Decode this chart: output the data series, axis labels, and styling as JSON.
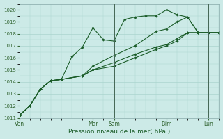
{
  "xlabel": "Pression niveau de la mer( hPa )",
  "ylim": [
    1011,
    1020.5
  ],
  "yticks": [
    1011,
    1012,
    1013,
    1014,
    1015,
    1016,
    1017,
    1018,
    1019,
    1020
  ],
  "bg_color": "#cceae7",
  "grid_color": "#aad4ce",
  "line_color": "#1a5c28",
  "x_tick_positions": [
    0,
    3.5,
    4.5,
    7.0,
    9.0
  ],
  "x_tick_labels": [
    "Ven",
    "Mar",
    "Sam",
    "Dim",
    "Lun"
  ],
  "xlim": [
    0,
    9.5
  ],
  "vline_color": "#558866",
  "vline_positions": [
    0,
    3.5,
    4.5,
    7.0,
    9.0
  ],
  "series": [
    {
      "x": [
        0,
        0.5,
        1.0,
        1.5,
        2.0,
        2.5,
        3.0,
        3.5,
        4.0,
        4.5,
        5.0,
        5.5,
        6.0,
        6.5,
        7.0,
        7.5,
        8.0,
        8.5,
        9.0,
        9.5
      ],
      "y": [
        1011.2,
        1012.0,
        1013.4,
        1014.1,
        1014.2,
        1016.1,
        1016.9,
        1018.5,
        1017.5,
        1017.4,
        1019.2,
        1019.4,
        1019.5,
        1019.5,
        1020.0,
        1019.6,
        1019.4,
        1018.1,
        1018.1,
        1018.1
      ]
    },
    {
      "x": [
        0,
        0.5,
        1.0,
        1.5,
        2.0,
        3.0,
        3.5,
        4.5,
        5.5,
        6.5,
        7.0,
        7.5,
        8.0,
        8.5,
        9.0,
        9.5
      ],
      "y": [
        1011.2,
        1012.0,
        1013.4,
        1014.1,
        1014.2,
        1014.5,
        1015.3,
        1016.2,
        1017.0,
        1018.2,
        1018.4,
        1019.0,
        1019.4,
        1018.1,
        1018.1,
        1018.1
      ]
    },
    {
      "x": [
        0,
        0.5,
        1.0,
        1.5,
        2.0,
        3.0,
        3.5,
        4.5,
        5.5,
        6.5,
        7.0,
        7.5,
        8.0,
        8.5,
        9.0,
        9.5
      ],
      "y": [
        1011.2,
        1012.0,
        1013.4,
        1014.1,
        1014.2,
        1014.5,
        1015.0,
        1015.6,
        1016.3,
        1016.9,
        1017.1,
        1017.6,
        1018.1,
        1018.1,
        1018.1,
        1018.1
      ]
    },
    {
      "x": [
        0,
        0.5,
        1.0,
        1.5,
        2.0,
        3.0,
        3.5,
        4.5,
        5.5,
        6.5,
        7.0,
        7.5,
        8.0,
        8.5,
        9.0,
        9.5
      ],
      "y": [
        1011.2,
        1012.0,
        1013.4,
        1014.1,
        1014.2,
        1014.5,
        1015.0,
        1015.3,
        1016.0,
        1016.7,
        1017.0,
        1017.4,
        1018.1,
        1018.1,
        1018.1,
        1018.1
      ]
    }
  ]
}
